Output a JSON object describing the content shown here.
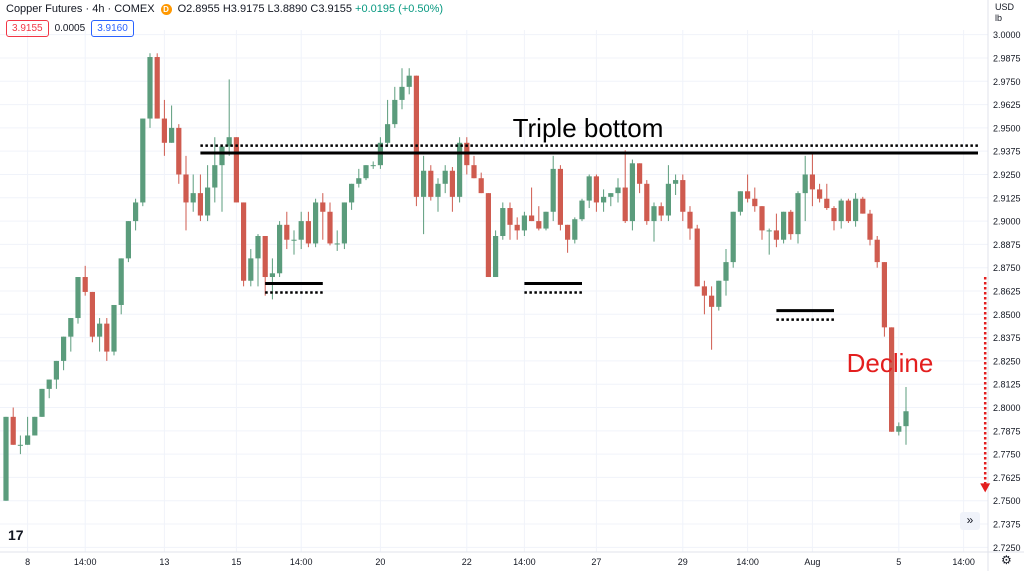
{
  "header": {
    "title": "Copper Futures · 4h · COMEX",
    "badge": "D",
    "open_label": "O",
    "open": "2.8955",
    "high_label": "H",
    "high": "3.9175",
    "low_label": "L",
    "low": "3.8890",
    "close_label": "C",
    "close": "3.9155",
    "change": "+0.0195 (+0.50%)"
  },
  "quote": {
    "bid": "3.9155",
    "spread": "0.0005",
    "ask": "3.9160"
  },
  "axis_unit": {
    "currency": "USD",
    "unit": "lb"
  },
  "colors": {
    "up": "#5b9c7c",
    "down": "#cf5b4f",
    "grid": "#f0f3fa",
    "annotation": "#000000",
    "decline": "#e31e1e"
  },
  "icons": {
    "scroll": "double-chevron-right-icon",
    "settings": "gear-icon"
  },
  "chart_data": {
    "type": "candlestick",
    "y_ticks": [
      "3.0000",
      "2.9875",
      "2.9750",
      "2.9625",
      "2.9500",
      "2.9375",
      "2.9250",
      "2.9125",
      "2.9000",
      "2.8875",
      "2.8750",
      "2.8625",
      "2.8500",
      "2.8375",
      "2.8250",
      "2.8125",
      "2.8000",
      "2.7875",
      "2.7750",
      "2.7625",
      "2.7500",
      "2.7375",
      "2.7250"
    ],
    "ylim": [
      2.7225,
      3.0025
    ],
    "x_ticks": [
      {
        "label": "8",
        "x": 3
      },
      {
        "label": "14:00",
        "x": 11
      },
      {
        "label": "13",
        "x": 22
      },
      {
        "label": "15",
        "x": 32
      },
      {
        "label": "14:00",
        "x": 41
      },
      {
        "label": "20",
        "x": 52
      },
      {
        "label": "22",
        "x": 64
      },
      {
        "label": "14:00",
        "x": 72
      },
      {
        "label": "27",
        "x": 82
      },
      {
        "label": "29",
        "x": 94
      },
      {
        "label": "14:00",
        "x": 103
      },
      {
        "label": "Aug",
        "x": 112
      },
      {
        "label": "5",
        "x": 124
      },
      {
        "label": "14:00",
        "x": 133
      }
    ],
    "annotations": {
      "title": "Triple bottom",
      "label": "Decline",
      "resistance_level": 2.9365,
      "resistance_dotted_level": 2.9405,
      "resistance_x": [
        27,
        135
      ],
      "bottoms": [
        {
          "x": [
            36,
            44
          ],
          "level": 2.8665
        },
        {
          "x": [
            72,
            80
          ],
          "level": 2.8665
        },
        {
          "x": [
            107,
            115
          ],
          "level": 2.852
        }
      ],
      "decline_arrow": {
        "x": 136,
        "from": 2.87,
        "to": 2.755
      }
    },
    "candles": [
      [
        2.75,
        2.795,
        2.75,
        2.795
      ],
      [
        2.795,
        2.8,
        2.78,
        2.78
      ],
      [
        2.78,
        2.785,
        2.775,
        2.78
      ],
      [
        2.78,
        2.795,
        2.78,
        2.785
      ],
      [
        2.785,
        2.795,
        2.785,
        2.795
      ],
      [
        2.795,
        2.81,
        2.795,
        2.81
      ],
      [
        2.81,
        2.815,
        2.805,
        2.815
      ],
      [
        2.815,
        2.825,
        2.81,
        2.825
      ],
      [
        2.825,
        2.838,
        2.82,
        2.838
      ],
      [
        2.838,
        2.848,
        2.83,
        2.848
      ],
      [
        2.848,
        2.87,
        2.845,
        2.87
      ],
      [
        2.87,
        2.876,
        2.86,
        2.862
      ],
      [
        2.862,
        2.862,
        2.835,
        2.838
      ],
      [
        2.838,
        2.848,
        2.83,
        2.845
      ],
      [
        2.845,
        2.848,
        2.825,
        2.83
      ],
      [
        2.83,
        2.855,
        2.828,
        2.855
      ],
      [
        2.855,
        2.88,
        2.85,
        2.88
      ],
      [
        2.88,
        2.9,
        2.878,
        2.9
      ],
      [
        2.9,
        2.912,
        2.895,
        2.91
      ],
      [
        2.91,
        2.955,
        2.908,
        2.955
      ],
      [
        2.955,
        2.99,
        2.95,
        2.988
      ],
      [
        2.988,
        2.99,
        2.955,
        2.955
      ],
      [
        2.955,
        2.965,
        2.935,
        2.942
      ],
      [
        2.942,
        2.962,
        2.942,
        2.95
      ],
      [
        2.95,
        2.952,
        2.92,
        2.925
      ],
      [
        2.925,
        2.935,
        2.895,
        2.91
      ],
      [
        2.91,
        2.925,
        2.905,
        2.915
      ],
      [
        2.915,
        2.925,
        2.9,
        2.903
      ],
      [
        2.903,
        2.93,
        2.9,
        2.918
      ],
      [
        2.918,
        2.945,
        2.91,
        2.93
      ],
      [
        2.93,
        2.94,
        2.905,
        2.94
      ],
      [
        2.94,
        2.976,
        2.935,
        2.945
      ],
      [
        2.945,
        2.945,
        2.91,
        2.91
      ],
      [
        2.91,
        2.91,
        2.865,
        2.868
      ],
      [
        2.868,
        2.885,
        2.865,
        2.88
      ],
      [
        2.88,
        2.893,
        2.865,
        2.892
      ],
      [
        2.892,
        2.892,
        2.86,
        2.87
      ],
      [
        2.87,
        2.88,
        2.858,
        2.872
      ],
      [
        2.872,
        2.9,
        2.87,
        2.898
      ],
      [
        2.898,
        2.905,
        2.885,
        2.89
      ],
      [
        2.89,
        2.895,
        2.882,
        2.89
      ],
      [
        2.89,
        2.905,
        2.885,
        2.9
      ],
      [
        2.9,
        2.905,
        2.886,
        2.888
      ],
      [
        2.888,
        2.912,
        2.886,
        2.91
      ],
      [
        2.91,
        2.915,
        2.89,
        2.905
      ],
      [
        2.905,
        2.91,
        2.887,
        2.888
      ],
      [
        2.888,
        2.895,
        2.884,
        2.888
      ],
      [
        2.888,
        2.91,
        2.885,
        2.91
      ],
      [
        2.91,
        2.92,
        2.906,
        2.92
      ],
      [
        2.92,
        2.928,
        2.918,
        2.923
      ],
      [
        2.923,
        2.93,
        2.922,
        2.93
      ],
      [
        2.93,
        2.932,
        2.928,
        2.93
      ],
      [
        2.93,
        2.945,
        2.928,
        2.942
      ],
      [
        2.942,
        2.965,
        2.94,
        2.952
      ],
      [
        2.952,
        2.972,
        2.95,
        2.965
      ],
      [
        2.965,
        2.982,
        2.96,
        2.972
      ],
      [
        2.972,
        2.982,
        2.968,
        2.978
      ],
      [
        2.978,
        2.978,
        2.908,
        2.913
      ],
      [
        2.913,
        2.935,
        2.893,
        2.927
      ],
      [
        2.927,
        2.93,
        2.911,
        2.913
      ],
      [
        2.913,
        2.923,
        2.905,
        2.92
      ],
      [
        2.92,
        2.93,
        2.915,
        2.927
      ],
      [
        2.927,
        2.929,
        2.905,
        2.913
      ],
      [
        2.913,
        2.945,
        2.91,
        2.942
      ],
      [
        2.942,
        2.945,
        2.925,
        2.93
      ],
      [
        2.93,
        2.935,
        2.923,
        2.923
      ],
      [
        2.923,
        2.926,
        2.915,
        2.915
      ],
      [
        2.915,
        2.915,
        2.87,
        2.87
      ],
      [
        2.87,
        2.895,
        2.87,
        2.892
      ],
      [
        2.892,
        2.91,
        2.89,
        2.907
      ],
      [
        2.907,
        2.91,
        2.89,
        2.898
      ],
      [
        2.898,
        2.902,
        2.89,
        2.895
      ],
      [
        2.895,
        2.905,
        2.892,
        2.903
      ],
      [
        2.903,
        2.918,
        2.9,
        2.9
      ],
      [
        2.9,
        2.908,
        2.895,
        2.896
      ],
      [
        2.896,
        2.905,
        2.895,
        2.905
      ],
      [
        2.905,
        2.935,
        2.9,
        2.928
      ],
      [
        2.928,
        2.93,
        2.895,
        2.898
      ],
      [
        2.898,
        2.898,
        2.883,
        2.89
      ],
      [
        2.89,
        2.902,
        2.888,
        2.901
      ],
      [
        2.901,
        2.912,
        2.9,
        2.911
      ],
      [
        2.911,
        2.925,
        2.907,
        2.924
      ],
      [
        2.924,
        2.925,
        2.905,
        2.91
      ],
      [
        2.91,
        2.917,
        2.905,
        2.913
      ],
      [
        2.913,
        2.915,
        2.908,
        2.915
      ],
      [
        2.915,
        2.923,
        2.91,
        2.918
      ],
      [
        2.918,
        2.938,
        2.899,
        2.9
      ],
      [
        2.9,
        2.933,
        2.895,
        2.931
      ],
      [
        2.931,
        2.931,
        2.915,
        2.92
      ],
      [
        2.92,
        2.922,
        2.898,
        2.9
      ],
      [
        2.9,
        2.91,
        2.889,
        2.908
      ],
      [
        2.908,
        2.91,
        2.9,
        2.903
      ],
      [
        2.903,
        2.93,
        2.9,
        2.92
      ],
      [
        2.92,
        2.925,
        2.914,
        2.922
      ],
      [
        2.922,
        2.925,
        2.9,
        2.905
      ],
      [
        2.905,
        2.908,
        2.89,
        2.896
      ],
      [
        2.896,
        2.898,
        2.865,
        2.865
      ],
      [
        2.865,
        2.868,
        2.85,
        2.86
      ],
      [
        2.86,
        2.865,
        2.831,
        2.854
      ],
      [
        2.854,
        2.868,
        2.852,
        2.868
      ],
      [
        2.868,
        2.885,
        2.86,
        2.878
      ],
      [
        2.878,
        2.905,
        2.875,
        2.905
      ],
      [
        2.905,
        2.916,
        2.903,
        2.916
      ],
      [
        2.916,
        2.925,
        2.91,
        2.912
      ],
      [
        2.912,
        2.918,
        2.905,
        2.908
      ],
      [
        2.908,
        2.908,
        2.89,
        2.895
      ],
      [
        2.895,
        2.896,
        2.882,
        2.895
      ],
      [
        2.895,
        2.904,
        2.886,
        2.89
      ],
      [
        2.89,
        2.905,
        2.888,
        2.905
      ],
      [
        2.905,
        2.906,
        2.89,
        2.893
      ],
      [
        2.893,
        2.916,
        2.888,
        2.915
      ],
      [
        2.915,
        2.935,
        2.9,
        2.925
      ],
      [
        2.925,
        2.936,
        2.908,
        2.917
      ],
      [
        2.917,
        2.92,
        2.91,
        2.912
      ],
      [
        2.912,
        2.92,
        2.906,
        2.907
      ],
      [
        2.907,
        2.908,
        2.895,
        2.9
      ],
      [
        2.9,
        2.912,
        2.896,
        2.911
      ],
      [
        2.911,
        2.912,
        2.899,
        2.9
      ],
      [
        2.9,
        2.915,
        2.897,
        2.912
      ],
      [
        2.912,
        2.913,
        2.904,
        2.904
      ],
      [
        2.904,
        2.906,
        2.887,
        2.89
      ],
      [
        2.89,
        2.892,
        2.875,
        2.878
      ],
      [
        2.878,
        2.878,
        2.838,
        2.843
      ],
      [
        2.843,
        2.843,
        2.787,
        2.787
      ],
      [
        2.787,
        2.792,
        2.785,
        2.79
      ],
      [
        2.79,
        2.811,
        2.78,
        2.798
      ]
    ]
  }
}
